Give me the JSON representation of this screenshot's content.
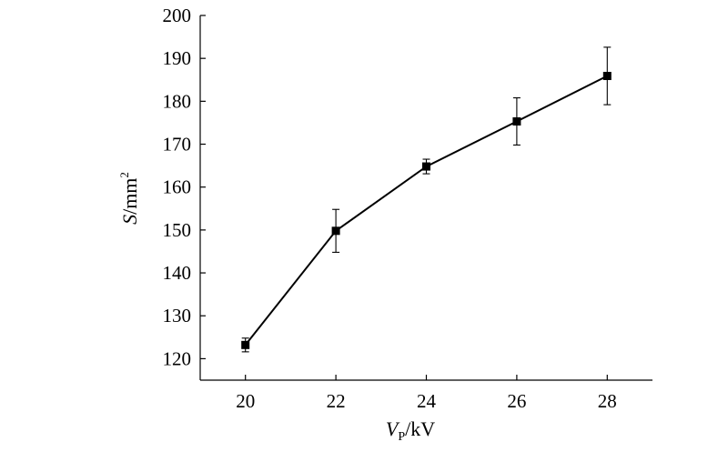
{
  "chart_data": {
    "type": "line",
    "title": "",
    "xlabel": {
      "main": "V",
      "sub": "P",
      "unit": "/kV"
    },
    "ylabel": {
      "main": "S",
      "unit": "/mm",
      "sup": "2"
    },
    "xlim": [
      19,
      29
    ],
    "ylim": [
      115,
      200
    ],
    "xticks": [
      20,
      22,
      24,
      26,
      28
    ],
    "yticks": [
      120,
      130,
      140,
      150,
      160,
      170,
      180,
      190,
      200
    ],
    "grid": false,
    "legend": "none",
    "series": [
      {
        "x": [
          20,
          22,
          24,
          26,
          28
        ],
        "y": [
          123.2,
          149.8,
          164.8,
          175.3,
          185.9
        ],
        "err": [
          1.6,
          5.0,
          1.7,
          5.5,
          6.7
        ]
      }
    ]
  }
}
